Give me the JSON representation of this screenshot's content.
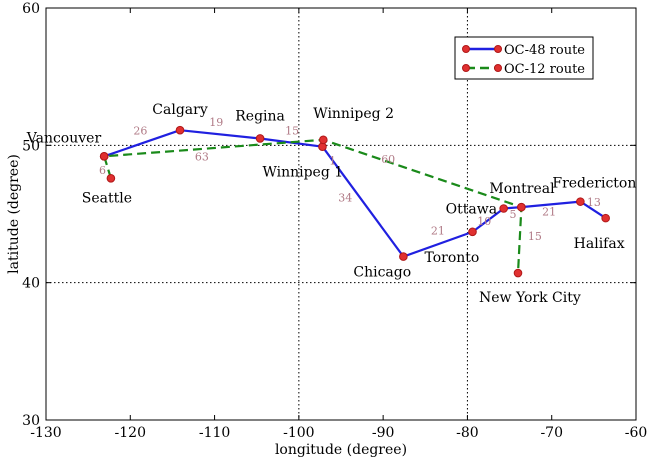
{
  "chart_data": {
    "type": "line",
    "xlabel": "longitude (degree)",
    "ylabel": "latitude (degree)",
    "xlim": [
      -130,
      -60
    ],
    "ylim": [
      30,
      60
    ],
    "xticks": [
      -130,
      -120,
      -110,
      -100,
      -90,
      -80,
      -70,
      -60
    ],
    "yticks": [
      30,
      40,
      50,
      60
    ],
    "grid_lines_y": [
      40,
      50
    ],
    "grid_lines_x": [
      -100,
      -80
    ],
    "legend": {
      "placement": "top-right"
    },
    "colors": {
      "oc48": "#2020e0",
      "oc12": "#1a8a1a",
      "node_fill": "#e03030",
      "edge_label": "#b07a86"
    },
    "cities": [
      {
        "name": "Vancouver",
        "x": -123.1,
        "y": 49.2
      },
      {
        "name": "Seattle",
        "x": -122.3,
        "y": 47.6
      },
      {
        "name": "Calgary",
        "x": -114.1,
        "y": 51.1
      },
      {
        "name": "Regina",
        "x": -104.6,
        "y": 50.5
      },
      {
        "name": "Winnipeg 2",
        "x": -97.1,
        "y": 50.4
      },
      {
        "name": "Winnipeg 1",
        "x": -97.2,
        "y": 49.9
      },
      {
        "name": "Chicago",
        "x": -87.6,
        "y": 41.9
      },
      {
        "name": "Toronto",
        "x": -79.4,
        "y": 43.7
      },
      {
        "name": "Ottawa",
        "x": -75.7,
        "y": 45.4
      },
      {
        "name": "Montreal",
        "x": -73.6,
        "y": 45.5
      },
      {
        "name": "New York City",
        "x": -74.0,
        "y": 40.7
      },
      {
        "name": "Fredericton",
        "x": -66.6,
        "y": 45.9
      },
      {
        "name": "Halifax",
        "x": -63.6,
        "y": 44.7
      }
    ],
    "series": [
      {
        "name": "OC-48 route",
        "style": "solid",
        "points": [
          [
            "Vancouver",
            -123.1,
            49.2
          ],
          [
            "Calgary",
            -114.1,
            51.1
          ],
          [
            "Regina",
            -104.6,
            50.5
          ],
          [
            "Winnipeg 1",
            -97.2,
            49.9
          ],
          [
            "Chicago",
            -87.6,
            41.9
          ],
          [
            "Toronto",
            -79.4,
            43.7
          ],
          [
            "Ottawa",
            -75.7,
            45.4
          ],
          [
            "Montreal",
            -73.6,
            45.5
          ],
          [
            "Fredericton",
            -66.6,
            45.9
          ],
          [
            "Halifax",
            -63.6,
            44.7
          ]
        ]
      },
      {
        "name": "OC-12 route",
        "style": "dashed",
        "points": [
          [
            "Seattle",
            -122.3,
            47.6
          ],
          [
            "Vancouver",
            -123.1,
            49.2
          ],
          [
            "Winnipeg 2",
            -97.1,
            50.4
          ],
          [
            "Montreal",
            -73.6,
            45.5
          ],
          [
            "New York City",
            -74.0,
            40.7
          ]
        ]
      }
    ],
    "edge_labels": [
      {
        "text": "6",
        "x": -123.3,
        "y": 47.9
      },
      {
        "text": "26",
        "x": -118.8,
        "y": 50.8
      },
      {
        "text": "63",
        "x": -111.5,
        "y": 48.9
      },
      {
        "text": "19",
        "x": -109.8,
        "y": 51.4
      },
      {
        "text": "15",
        "x": -100.8,
        "y": 50.8
      },
      {
        "text": "1",
        "x": -96.0,
        "y": 48.6
      },
      {
        "text": "60",
        "x": -89.4,
        "y": 48.7
      },
      {
        "text": "34",
        "x": -94.5,
        "y": 45.9
      },
      {
        "text": "21",
        "x": -83.5,
        "y": 43.5
      },
      {
        "text": "10",
        "x": -78.0,
        "y": 44.2
      },
      {
        "text": "5",
        "x": -74.6,
        "y": 44.7
      },
      {
        "text": "15",
        "x": -72.0,
        "y": 43.1
      },
      {
        "text": "21",
        "x": -70.3,
        "y": 44.9
      },
      {
        "text": "13",
        "x": -65.0,
        "y": 45.6
      }
    ]
  }
}
